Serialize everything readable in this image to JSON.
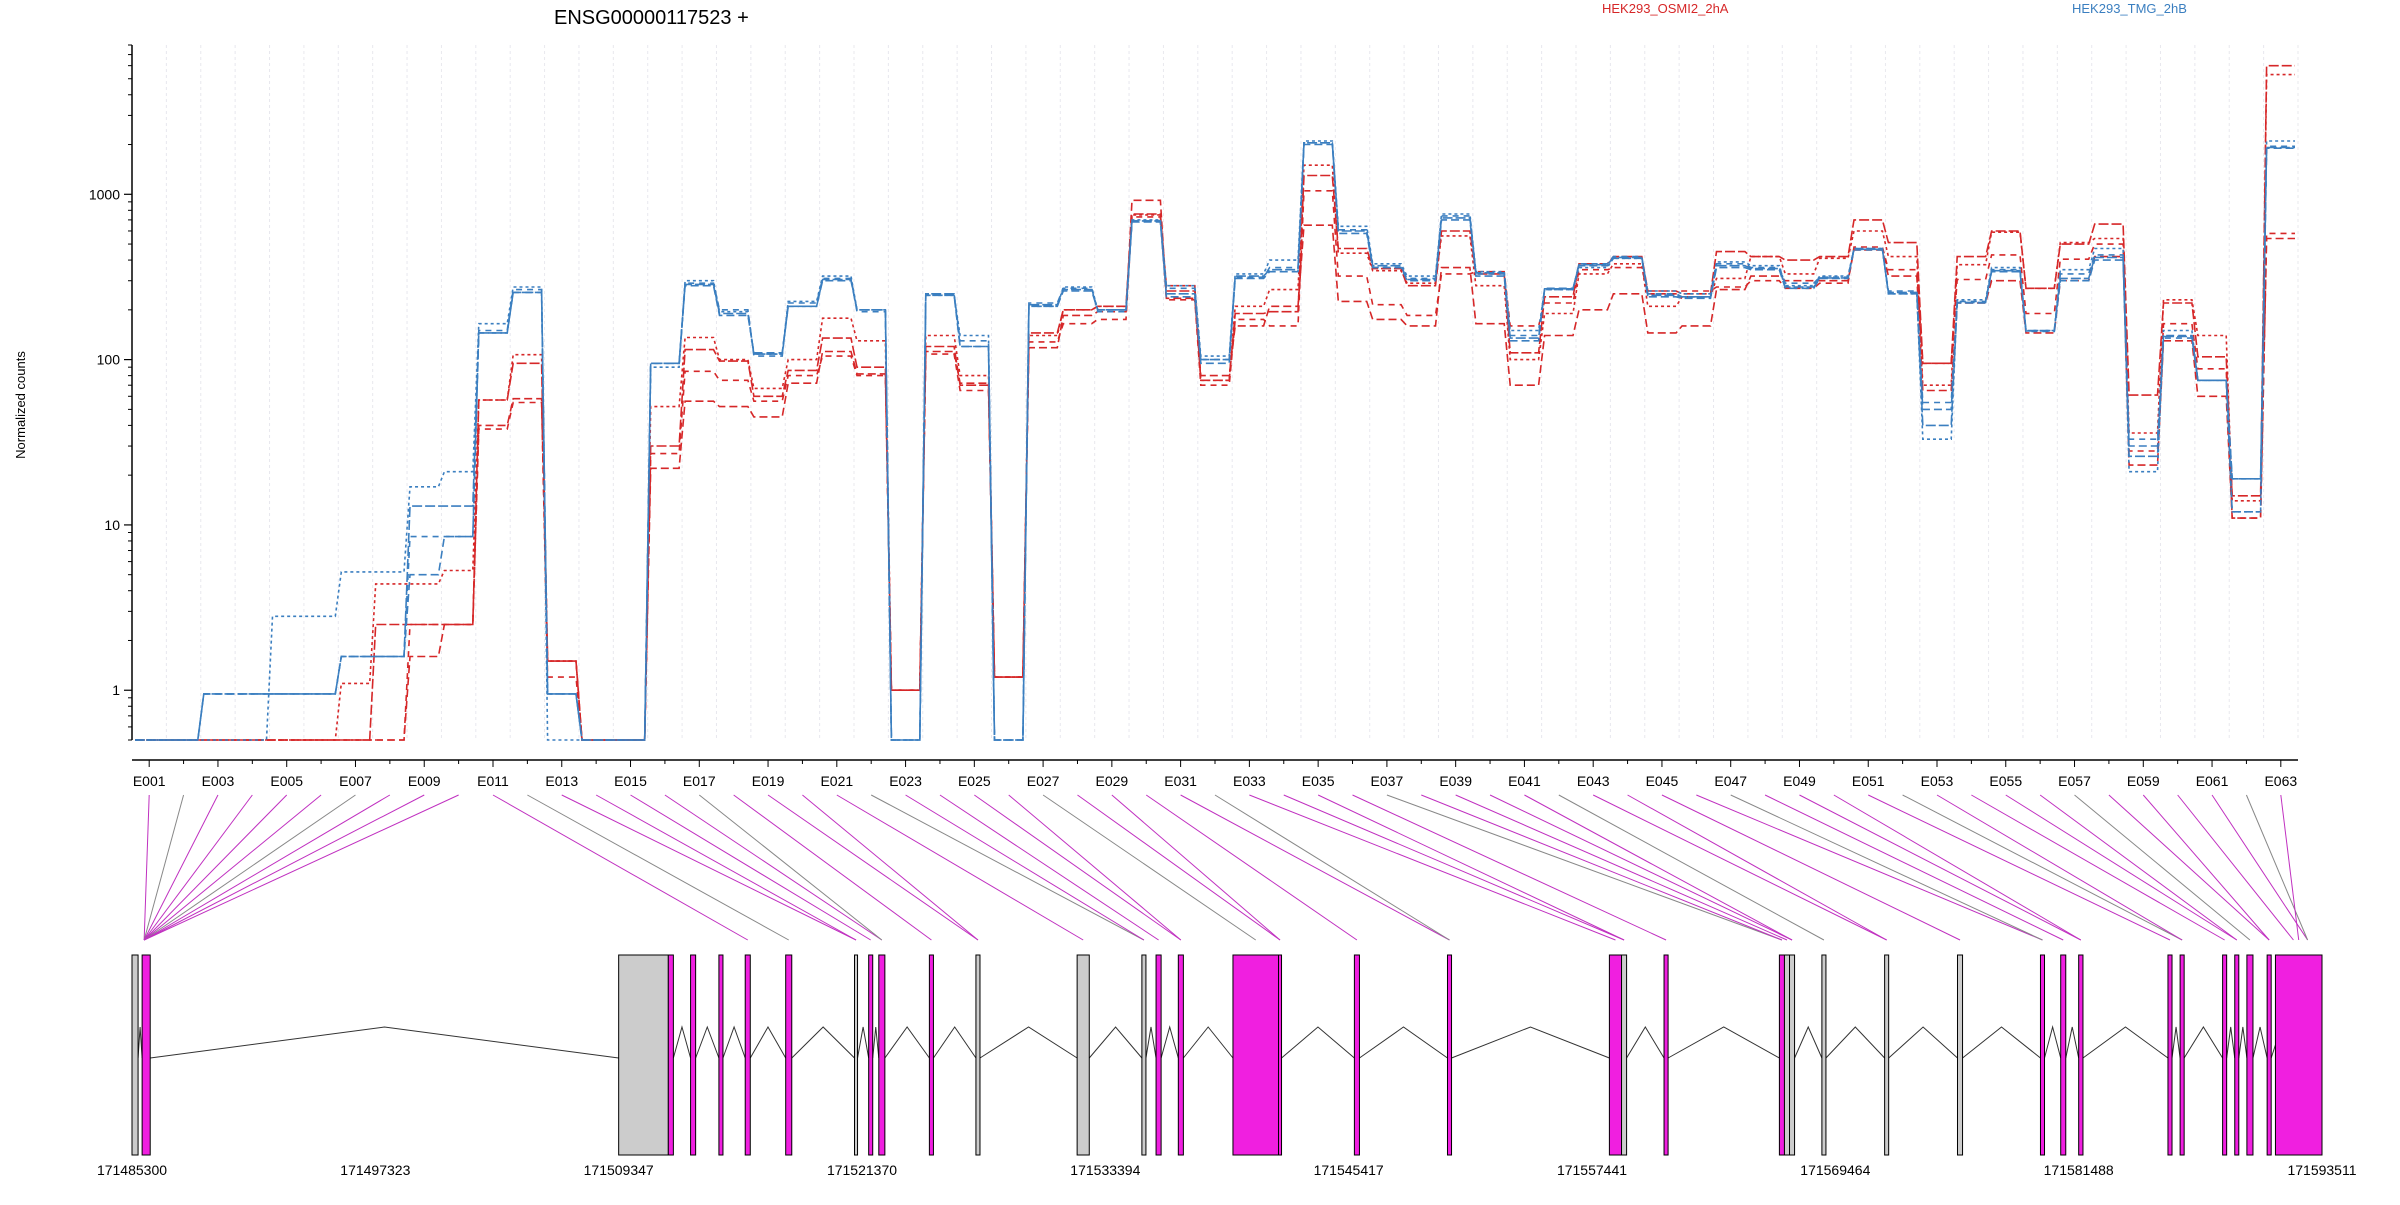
{
  "chart_data": {
    "type": "line",
    "title": "ENSG00000117523 +",
    "ylabel": "Normalized counts",
    "xlabel": "",
    "yscale": "log",
    "ylim": [
      0.5,
      8000
    ],
    "yticks": [
      "1",
      "10",
      "100",
      "1000"
    ],
    "grid": true,
    "legend_placement": "top-right",
    "legend": [
      {
        "label": "HEK293_OSMI2_2hA",
        "color": "#d62728"
      },
      {
        "label": "HEK293_TMG_2hB",
        "color": "#3b7fc0"
      }
    ],
    "categories": [
      "E001",
      "E002",
      "E003",
      "E004",
      "E005",
      "E006",
      "E007",
      "E008",
      "E009",
      "E010",
      "E011",
      "E012",
      "E013",
      "E014",
      "E015",
      "E016",
      "E017",
      "E018",
      "E019",
      "E020",
      "E021",
      "E022",
      "E023",
      "E024",
      "E025",
      "E026",
      "E027",
      "E028",
      "E029",
      "E030",
      "E031",
      "E032",
      "E033",
      "E034",
      "E035",
      "E036",
      "E037",
      "E038",
      "E039",
      "E040",
      "E041",
      "E042",
      "E043",
      "E044",
      "E045",
      "E046",
      "E047",
      "E048",
      "E049",
      "E050",
      "E051",
      "E052",
      "E053",
      "E054",
      "E055",
      "E056",
      "E057",
      "E058",
      "E059",
      "E060",
      "E061",
      "E062",
      "E063"
    ],
    "x_tick_labels": [
      "E001",
      "E003",
      "E005",
      "E007",
      "E009",
      "E011",
      "E013",
      "E015",
      "E017",
      "E019",
      "E021",
      "E023",
      "E025",
      "E027",
      "E029",
      "E031",
      "E033",
      "E035",
      "E037",
      "E039",
      "E041",
      "E043",
      "E045",
      "E047",
      "E049",
      "E051",
      "E053",
      "E055",
      "E057",
      "E059",
      "E061",
      "E063"
    ],
    "series": [
      {
        "group": "red",
        "dash": "8,4",
        "values": [
          0.5,
          0.5,
          0.5,
          0.5,
          0.5,
          0.5,
          0.5,
          0.5,
          1.6,
          2.5,
          40,
          58,
          1.5,
          0.5,
          0.5,
          22,
          56,
          52,
          45,
          72,
          112,
          82,
          1,
          112,
          72,
          1.2,
          118,
          185,
          195,
          920,
          235,
          80,
          160,
          210,
          650,
          225,
          175,
          160,
          360,
          165,
          70,
          140,
          200,
          250,
          145,
          160,
          265,
          320,
          300,
          300,
          460,
          320,
          65,
          220,
          300,
          145,
          300,
          420,
          23,
          130,
          60,
          11,
          540
        ]
      },
      {
        "group": "red",
        "dash": "6,5",
        "values": [
          0.5,
          0.5,
          0.5,
          0.5,
          0.5,
          0.5,
          0.5,
          0.5,
          2.5,
          2.5,
          38,
          55,
          1.2,
          0.5,
          0.5,
          27,
          85,
          75,
          56,
          80,
          105,
          80,
          1,
          108,
          65,
          1.2,
          128,
          165,
          175,
          730,
          230,
          70,
          175,
          160,
          1050,
          320,
          215,
          185,
          330,
          340,
          160,
          220,
          350,
          360,
          250,
          260,
          275,
          300,
          270,
          290,
          480,
          350,
          95,
          305,
          430,
          190,
          405,
          500,
          28,
          165,
          88,
          11,
          580
        ]
      },
      {
        "group": "red",
        "dash": "3,3",
        "values": [
          0.5,
          0.5,
          0.5,
          0.5,
          0.5,
          0.5,
          1.1,
          4.4,
          4.4,
          5.3,
          57,
          107,
          1.5,
          0.5,
          0.5,
          52,
          136,
          100,
          67,
          100,
          178,
          130,
          1,
          140,
          80,
          1.2,
          140,
          200,
          210,
          750,
          280,
          75,
          210,
          265,
          1500,
          440,
          345,
          290,
          560,
          280,
          100,
          190,
          330,
          380,
          210,
          240,
          310,
          420,
          330,
          410,
          600,
          420,
          70,
          375,
          590,
          270,
          510,
          540,
          36,
          230,
          140,
          14,
          5300
        ]
      },
      {
        "group": "red",
        "dash": "10,3",
        "values": [
          0.5,
          0.5,
          0.5,
          0.5,
          0.5,
          0.5,
          0.5,
          2.5,
          2.5,
          2.5,
          57,
          95,
          1.5,
          0.5,
          0.5,
          30,
          115,
          98,
          60,
          86,
          135,
          90,
          1,
          120,
          70,
          1.2,
          145,
          200,
          210,
          760,
          260,
          75,
          190,
          195,
          1300,
          470,
          355,
          280,
          600,
          330,
          110,
          240,
          380,
          420,
          260,
          250,
          450,
          420,
          400,
          420,
          700,
          510,
          95,
          420,
          600,
          270,
          500,
          660,
          61,
          220,
          104,
          15,
          6000
        ]
      },
      {
        "group": "blue",
        "dash": "8,4",
        "values": [
          0.5,
          0.5,
          0.95,
          0.95,
          0.95,
          0.95,
          1.6,
          1.6,
          5.0,
          8.5,
          145,
          255,
          0.95,
          0.5,
          0.5,
          95,
          280,
          185,
          110,
          210,
          300,
          200,
          0.5,
          245,
          120,
          0.5,
          210,
          260,
          200,
          680,
          240,
          95,
          310,
          340,
          2000,
          580,
          360,
          300,
          700,
          320,
          130,
          270,
          370,
          410,
          240,
          235,
          360,
          350,
          270,
          310,
          470,
          250,
          50,
          220,
          340,
          150,
          300,
          400,
          30,
          140,
          75,
          19,
          1900
        ]
      },
      {
        "group": "blue",
        "dash": "6,5",
        "values": [
          0.5,
          0.5,
          0.95,
          0.95,
          0.95,
          0.95,
          1.6,
          1.6,
          8.5,
          8.5,
          150,
          265,
          0.95,
          0.5,
          0.5,
          95,
          290,
          200,
          105,
          220,
          310,
          195,
          0.5,
          250,
          130,
          0.5,
          220,
          270,
          195,
          690,
          270,
          100,
          315,
          360,
          2050,
          610,
          360,
          310,
          740,
          330,
          140,
          265,
          380,
          420,
          250,
          240,
          380,
          360,
          290,
          315,
          460,
          260,
          55,
          225,
          350,
          148,
          330,
          430,
          33,
          135,
          75,
          12,
          1950
        ]
      },
      {
        "group": "blue",
        "dash": "3,3",
        "values": [
          0.5,
          0.5,
          0.5,
          0.5,
          2.8,
          2.8,
          5.2,
          5.2,
          17,
          21,
          165,
          275,
          0.5,
          0.5,
          0.5,
          90,
          300,
          195,
          108,
          225,
          320,
          200,
          0.5,
          245,
          140,
          0.5,
          210,
          275,
          200,
          700,
          280,
          105,
          330,
          400,
          2100,
          640,
          380,
          320,
          760,
          340,
          150,
          265,
          360,
          410,
          260,
          250,
          390,
          370,
          280,
          320,
          470,
          250,
          33,
          230,
          360,
          150,
          350,
          470,
          21,
          150,
          75,
          12,
          2100
        ]
      },
      {
        "group": "blue",
        "dash": "10,3",
        "values": [
          0.5,
          0.5,
          0.95,
          0.95,
          0.95,
          0.95,
          1.6,
          1.6,
          13,
          13,
          145,
          255,
          0.95,
          0.5,
          0.5,
          95,
          285,
          190,
          108,
          210,
          305,
          200,
          0.5,
          250,
          120,
          0.5,
          215,
          265,
          200,
          690,
          250,
          100,
          320,
          350,
          2050,
          600,
          370,
          305,
          720,
          335,
          135,
          268,
          375,
          415,
          245,
          240,
          370,
          355,
          275,
          312,
          465,
          255,
          40,
          222,
          345,
          149,
          310,
          415,
          26,
          138,
          75,
          19,
          1920
        ]
      }
    ],
    "genomic_axis": {
      "tick_labels": [
        "171485300",
        "171497323",
        "171509347",
        "171521370",
        "171533394",
        "171545417",
        "171557441",
        "171569464",
        "171581488",
        "171593511"
      ]
    },
    "gene_model_colors": {
      "significant": "#f01fe0",
      "non_significant": "#cccccc"
    }
  }
}
